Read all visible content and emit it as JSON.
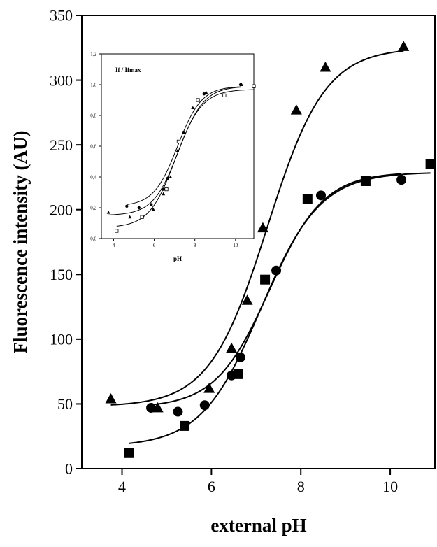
{
  "chart_data": [
    {
      "type": "scatter",
      "title": "",
      "xlabel": "external pH",
      "ylabel": "Fluorescence intensity (AU)",
      "xlim": [
        3.1,
        11.0
      ],
      "ylim": [
        0,
        350
      ],
      "x_ticks": [
        4,
        6,
        8,
        10
      ],
      "y_ticks": [
        0,
        50,
        100,
        150,
        200,
        250,
        300,
        350
      ],
      "x_tick_labels": [
        "4",
        "6",
        "8",
        "10"
      ],
      "y_tick_labels": [
        "0",
        "50",
        "100",
        "150",
        "200",
        "250",
        "300",
        "350"
      ],
      "grid": false,
      "legend": "none",
      "series": [
        {
          "marker": "triangle",
          "x": [
            3.75,
            4.8,
            5.95,
            6.45,
            6.8,
            7.15,
            7.9,
            8.55,
            10.3
          ],
          "y": [
            54,
            47,
            62,
            93,
            130,
            186,
            277,
            310,
            326
          ],
          "fit": {
            "bottom": 48,
            "top": 325,
            "pk": 7.25,
            "slope": 1.55
          }
        },
        {
          "marker": "circle",
          "x": [
            4.65,
            5.25,
            5.85,
            6.45,
            6.65,
            7.45,
            8.45,
            10.25
          ],
          "y": [
            47,
            44,
            49,
            72,
            86,
            153,
            211,
            223
          ],
          "fit": {
            "bottom": 47,
            "top": 229,
            "pk": 7.3,
            "slope": 1.65
          }
        },
        {
          "marker": "square",
          "x": [
            4.15,
            5.4,
            6.6,
            7.2,
            8.15,
            9.45,
            10.9
          ],
          "y": [
            12,
            33,
            73,
            146,
            208,
            222,
            235
          ],
          "fit": {
            "bottom": 17,
            "top": 229,
            "pk": 7.1,
            "slope": 1.5
          }
        }
      ]
    },
    {
      "type": "scatter",
      "title": "If / Ifmax",
      "xlabel": "pH",
      "ylabel": "",
      "xlim": [
        3.4,
        10.9
      ],
      "ylim": [
        0,
        1.2
      ],
      "x_ticks": [
        4,
        6,
        8,
        10
      ],
      "y_ticks": [
        0,
        0.2,
        0.4,
        0.6,
        0.8,
        1.0,
        1.2
      ],
      "x_tick_labels": [
        "4",
        "6",
        "8",
        "10"
      ],
      "y_tick_labels": [
        "0,0",
        "0,2",
        "0,4",
        "0,6",
        "0,8",
        "1,0",
        "1,2"
      ],
      "grid": false,
      "legend": "none",
      "series": [
        {
          "marker": "triangle",
          "x": [
            3.75,
            4.8,
            5.95,
            6.45,
            6.8,
            7.15,
            7.9,
            8.55,
            10.3
          ],
          "y": [
            0.17,
            0.14,
            0.19,
            0.29,
            0.4,
            0.57,
            0.85,
            0.95,
            1.0
          ],
          "fit": {
            "bottom": 0.15,
            "top": 0.99,
            "pk": 7.2,
            "slope": 1.6
          }
        },
        {
          "marker": "circle",
          "x": [
            4.65,
            5.25,
            5.85,
            6.45,
            6.65,
            7.45,
            8.45,
            10.25
          ],
          "y": [
            0.21,
            0.2,
            0.22,
            0.32,
            0.39,
            0.69,
            0.94,
            1.0
          ],
          "fit": {
            "bottom": 0.21,
            "top": 0.99,
            "pk": 7.15,
            "slope": 1.7
          }
        },
        {
          "marker": "square",
          "x": [
            4.15,
            5.4,
            6.6,
            7.2,
            8.15,
            9.45,
            10.9
          ],
          "y": [
            0.05,
            0.14,
            0.32,
            0.63,
            0.9,
            0.93,
            0.99
          ],
          "fit": {
            "bottom": 0.07,
            "top": 0.97,
            "pk": 7.05,
            "slope": 1.55
          }
        }
      ]
    }
  ]
}
